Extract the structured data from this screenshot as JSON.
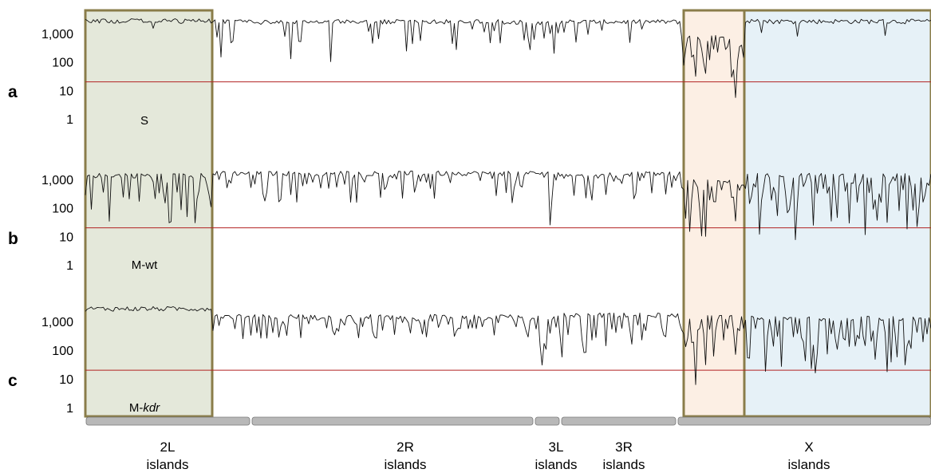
{
  "chart_data": {
    "type": "line",
    "yscale": "log",
    "ylim": [
      1,
      4000
    ],
    "yticks": [
      1,
      10,
      100,
      1000
    ],
    "ytick_labels": [
      "1",
      "10",
      "100",
      "1,000"
    ],
    "threshold": 20,
    "colors": {
      "trace": "#111111",
      "threshold": "#b22222",
      "box_border": "#8a7d4a",
      "box_2L": "#e4e8da",
      "box_mid": "#fcefe4",
      "box_X": "#e6f1f7",
      "chrom_bar": "#b8b8b8"
    },
    "chromosome_arms": [
      {
        "name": "2L",
        "sub": "islands"
      },
      {
        "name": "2R",
        "sub": "islands"
      },
      {
        "name": "3L",
        "sub": "islands"
      },
      {
        "name": "3R",
        "sub": "islands"
      },
      {
        "name": "X",
        "sub": "islands"
      }
    ],
    "panels": [
      {
        "letter": "a",
        "sample": "S",
        "sample_italic": "",
        "description": "High values (~3,000) throughout, dips in 2R/3L; strong drop to ~10–100 in the 3R–X boundary region"
      },
      {
        "letter": "b",
        "sample": "M-wt",
        "sample_italic": "",
        "description": "Fluctuating ~100–3,000 across the genome; X region highly variable with dips near 10–20"
      },
      {
        "letter": "c",
        "sample": "M-",
        "sample_italic": "kdr",
        "description": "Flat ~3,000 on 2L; variable elsewhere with dips to ~15 on 2R/3L; X region variable ~10–3,000"
      }
    ]
  }
}
